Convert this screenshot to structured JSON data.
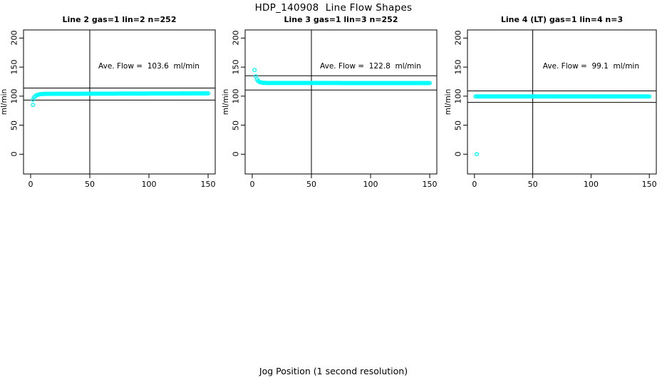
{
  "title": "HDP_140908  Line Flow Shapes",
  "xlabel": "Jog Position (1 second resolution)",
  "marker_color": "#00FFFF",
  "axis_color": "#000000",
  "chart_data": [
    {
      "type": "scatter",
      "title": "Line 2 gas=1 lin=2 n=252",
      "annotation": "Ave. Flow =  103.6  ml/min",
      "ave_flow_ml_min": 103.6,
      "ylabel": "ml/min",
      "xlim": [
        -6,
        156
      ],
      "ylim": [
        -34,
        214
      ],
      "x_ticks": [
        "0",
        "50",
        "100",
        "150"
      ],
      "y_ticks": [
        "0",
        "50",
        "100",
        "150",
        "200"
      ],
      "x_tick_values": [
        0,
        50,
        100,
        150
      ],
      "y_tick_values": [
        0,
        50,
        100,
        150,
        200
      ],
      "vline_x": 50,
      "hlines": [
        114.0,
        93.2
      ],
      "series": {
        "name": "flow",
        "x_start": 2,
        "x_end": 150,
        "x_step": 1,
        "breakpoints": [
          [
            2,
            94
          ],
          [
            3,
            98
          ],
          [
            4,
            100
          ],
          [
            5,
            101.5
          ],
          [
            6,
            102.5
          ],
          [
            8,
            103.3
          ],
          [
            12,
            104
          ],
          [
            150,
            104.8
          ]
        ]
      },
      "outliers": [
        [
          2,
          85
        ]
      ]
    },
    {
      "type": "scatter",
      "title": "Line 3 gas=1 lin=3 n=252",
      "annotation": "Ave. Flow =  122.8  ml/min",
      "ave_flow_ml_min": 122.8,
      "ylabel": "ml/min",
      "xlim": [
        -6,
        156
      ],
      "ylim": [
        -34,
        214
      ],
      "x_ticks": [
        "0",
        "50",
        "100",
        "150"
      ],
      "y_ticks": [
        "0",
        "50",
        "100",
        "150",
        "200"
      ],
      "x_tick_values": [
        0,
        50,
        100,
        150
      ],
      "y_tick_values": [
        0,
        50,
        100,
        150,
        200
      ],
      "vline_x": 50,
      "hlines": [
        135.1,
        110.5
      ],
      "series": {
        "name": "flow",
        "x_start": 3,
        "x_end": 150,
        "x_step": 1,
        "breakpoints": [
          [
            3,
            134
          ],
          [
            4,
            129
          ],
          [
            5,
            126
          ],
          [
            6,
            124.5
          ],
          [
            8,
            123.3
          ],
          [
            12,
            122.7
          ],
          [
            150,
            122.5
          ]
        ]
      },
      "outliers": [
        [
          2,
          145
        ]
      ]
    },
    {
      "type": "scatter",
      "title": "Line 4 (LT) gas=1 lin=4 n=3",
      "annotation": "Ave. Flow =  99.1  ml/min",
      "ave_flow_ml_min": 99.1,
      "ylabel": "ml/min",
      "xlim": [
        -6,
        156
      ],
      "ylim": [
        -34,
        214
      ],
      "x_ticks": [
        "0",
        "50",
        "100",
        "150"
      ],
      "y_ticks": [
        "0",
        "50",
        "100",
        "150",
        "200"
      ],
      "x_tick_values": [
        0,
        50,
        100,
        150
      ],
      "y_tick_values": [
        0,
        50,
        100,
        150,
        200
      ],
      "vline_x": 50,
      "hlines": [
        109.0,
        89.2
      ],
      "series": {
        "name": "flow",
        "x_start": 1,
        "x_end": 150,
        "x_step": 1,
        "breakpoints": [
          [
            1,
            99.5
          ],
          [
            150,
            99.5
          ]
        ]
      },
      "outliers": [
        [
          2,
          0
        ]
      ]
    }
  ]
}
